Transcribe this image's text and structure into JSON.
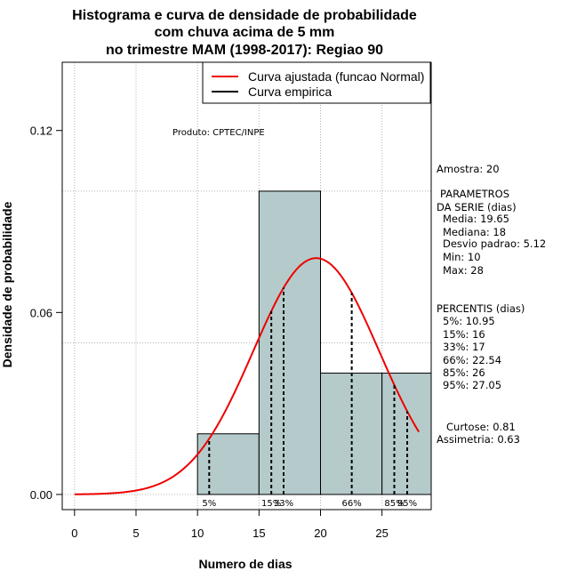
{
  "chart_data": {
    "type": "bar",
    "title_lines": [
      "Histograma e curva de densidade de probabilidade",
      "com chuva acima de 5 mm",
      "no trimestre MAM (1998-2017): Regiao 90"
    ],
    "xlabel": "Numero de dias",
    "ylabel": "Densidade de probabilidade",
    "xlim": [
      -1,
      29
    ],
    "ylim": [
      -0.005,
      0.1425
    ],
    "x_ticks": [
      0,
      5,
      10,
      15,
      20,
      25
    ],
    "x_tick_labels": [
      "0",
      "5",
      "10",
      "15",
      "20",
      "25"
    ],
    "y_ticks": [
      0.0,
      0.06,
      0.12
    ],
    "y_tick_labels": [
      "0.00",
      "0.06",
      "0.12"
    ],
    "grid": true,
    "grid_x": [
      0,
      5,
      10,
      15,
      20,
      25
    ],
    "grid_y": [
      0.0,
      0.05,
      0.1
    ],
    "bins": [
      {
        "x0": 10,
        "x1": 15,
        "density": 0.02
      },
      {
        "x0": 15,
        "x1": 20,
        "density": 0.1
      },
      {
        "x0": 20,
        "x1": 25,
        "density": 0.04
      },
      {
        "x0": 25,
        "x1": 29,
        "density": 0.04
      }
    ],
    "bar_color": "#b5cbcb",
    "curve_color": "#ee0000",
    "normal_curve": {
      "mean": 19.65,
      "sd": 5.12,
      "x_from": 0,
      "x_to": 28
    },
    "percentile_lines": [
      {
        "label": "5%",
        "x": 10.95
      },
      {
        "label": "15%",
        "x": 16
      },
      {
        "label": "33%",
        "x": 17
      },
      {
        "label": "66%",
        "x": 22.54
      },
      {
        "label": "85%",
        "x": 26
      },
      {
        "label": "95%",
        "x": 27.05
      }
    ],
    "legend": {
      "position": "top-right",
      "entries": [
        {
          "label": "Curva ajustada (funcao Normal)",
          "color": "#ee0000"
        },
        {
          "label": "Curva empirica",
          "color": "#000000"
        }
      ]
    },
    "annotation": "Produto: CPTEC/INPE"
  },
  "side_panel": {
    "sample": "Amostra: 20",
    "params_lines": [
      "PARAMETROS",
      "DA SERIE (dias)",
      "Media: 19.65",
      "Mediana: 18",
      "Desvio padrao: 5.12",
      "Min: 10",
      "Max: 28"
    ],
    "percentis_lines": [
      "PERCENTIS (dias)",
      "5%: 10.95",
      "15%: 16",
      "33%: 17",
      "66%: 22.54",
      "85%: 26",
      "95%: 27.05"
    ],
    "shape_lines": [
      "Curtose: 0.81",
      "Assimetria: 0.63"
    ]
  }
}
